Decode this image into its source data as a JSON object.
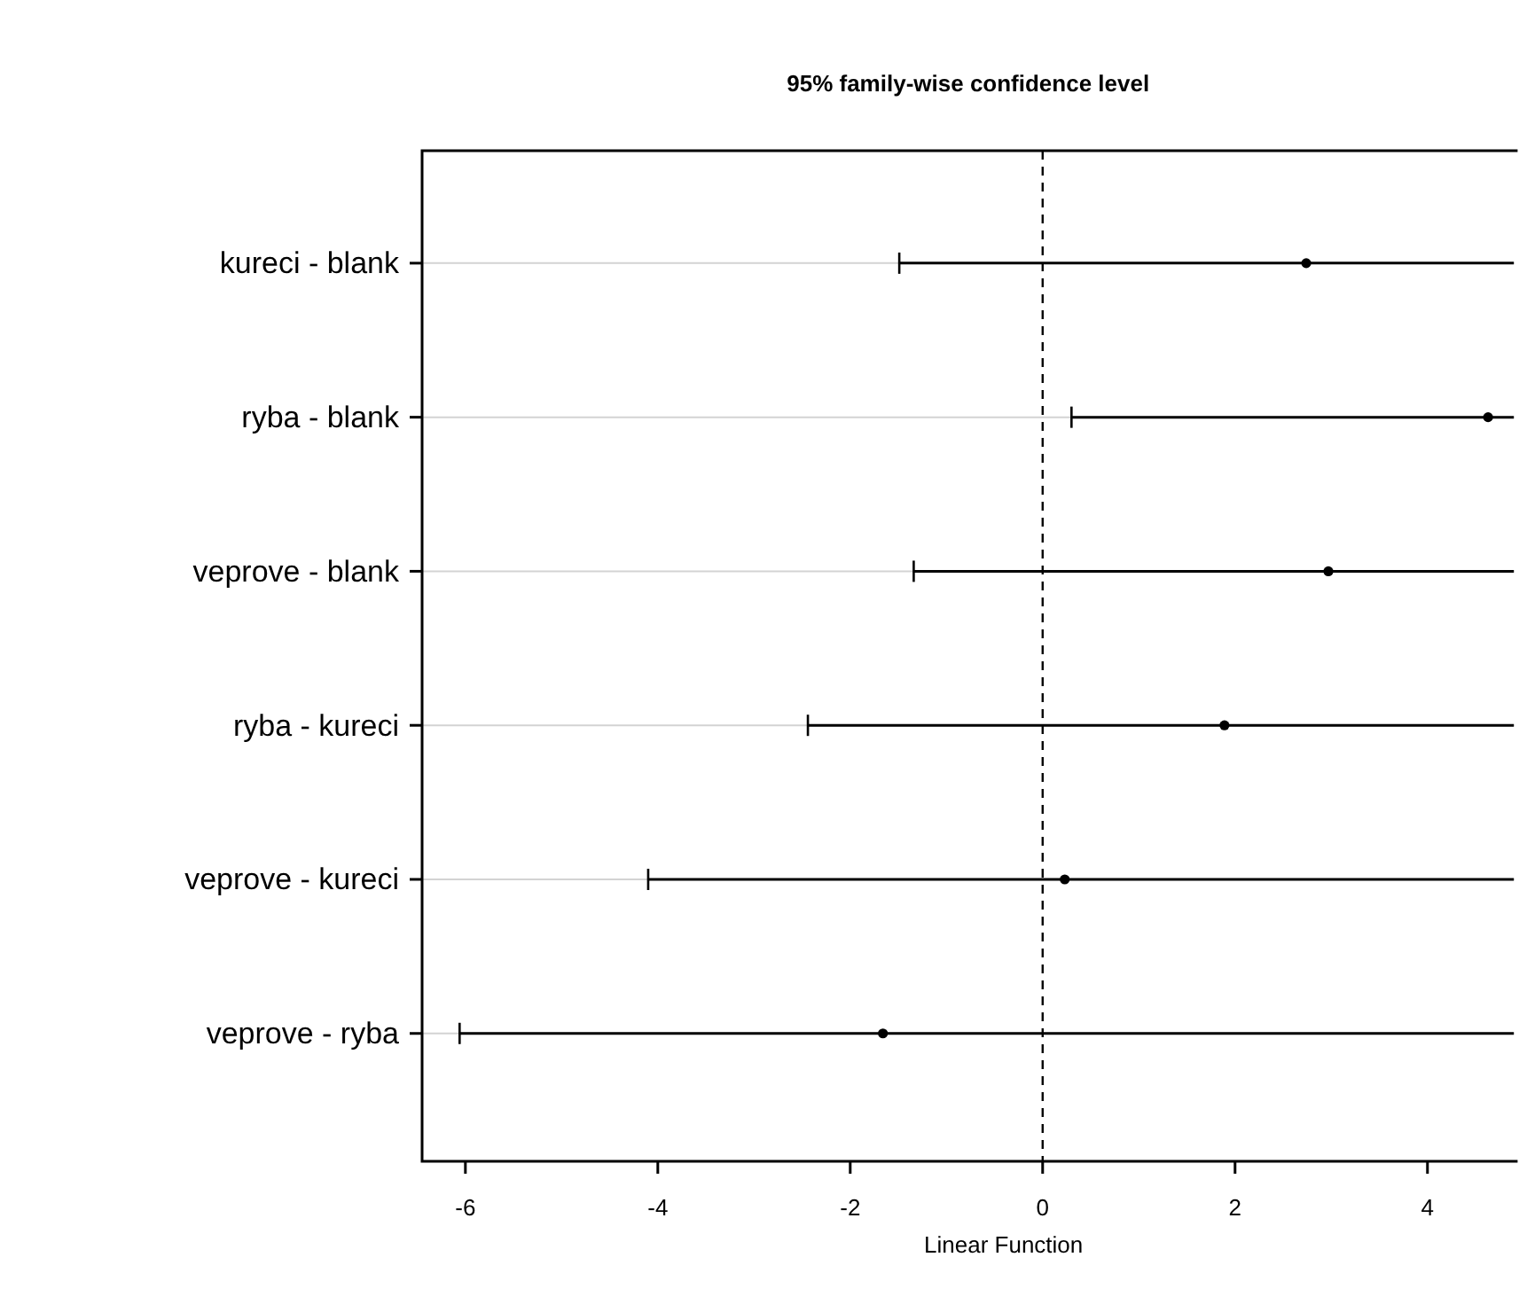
{
  "chart_data": {
    "type": "scatter",
    "orientation": "horizontal",
    "title": "95% family-wise confidence level",
    "xlabel": "Linear Function",
    "categories": [
      "kureci - blank",
      "ryba - blank",
      "veprove - blank",
      "ryba - kureci",
      "veprove - kureci",
      "veprove - ryba"
    ],
    "values": [
      2.74,
      4.63,
      2.97,
      1.89,
      0.23,
      -1.66
    ],
    "errors": [
      [
        -1.49,
        4.9
      ],
      [
        0.3,
        4.9
      ],
      [
        -1.34,
        4.9
      ],
      [
        -2.44,
        4.9
      ],
      [
        -4.1,
        4.9
      ],
      [
        -6.06,
        4.9
      ]
    ],
    "color": "#000000",
    "marker": "circle",
    "grid": "y",
    "xlim": [
      -6.45,
      4.9
    ],
    "xticks": [
      -6,
      -4,
      -2,
      0,
      2,
      4
    ],
    "ref_lines": [
      {
        "axis": "x",
        "value": 0,
        "line_style": "dashed",
        "color": "#000000"
      }
    ]
  }
}
